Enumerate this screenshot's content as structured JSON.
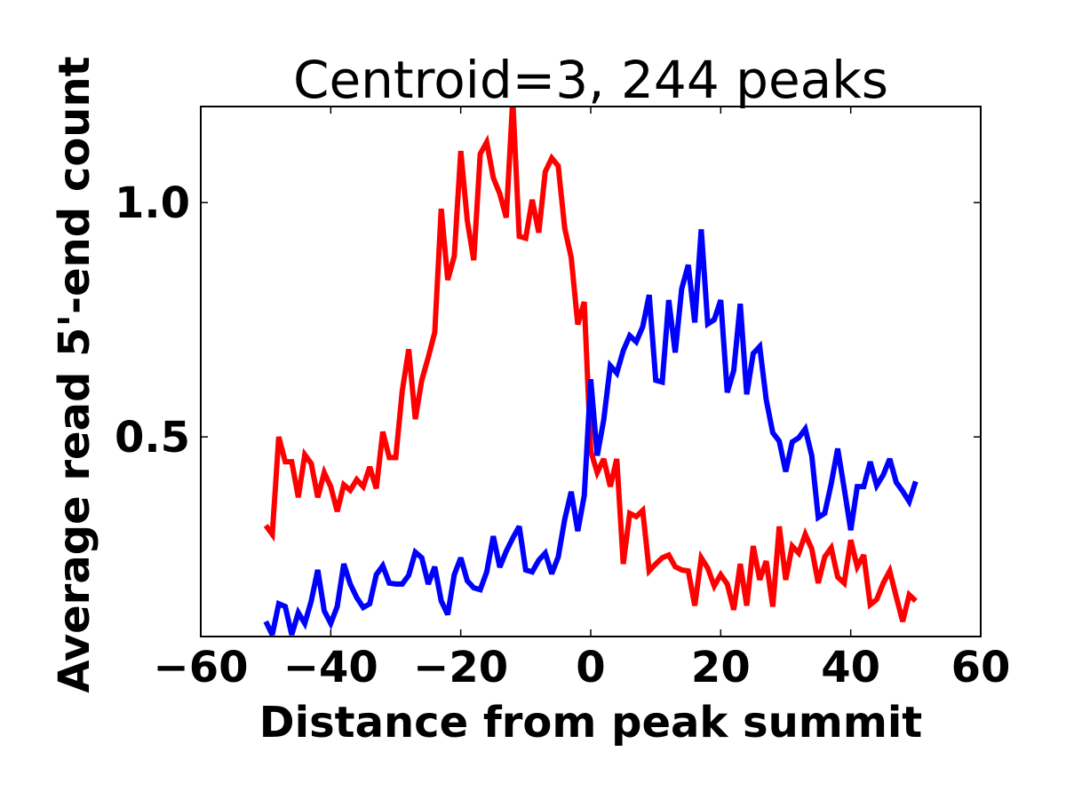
{
  "chart_data": {
    "type": "line",
    "title": "Centroid=3, 244 peaks",
    "xlabel": "Distance from peak summit",
    "ylabel": "Average read 5'-end count",
    "xlim": [
      -60,
      60
    ],
    "ylim": [
      0.074,
      1.205
    ],
    "xticks": [
      -60,
      -40,
      -20,
      0,
      20,
      40,
      60
    ],
    "xticklabels": [
      "−60",
      "−40",
      "−20",
      "0",
      "20",
      "40",
      "60"
    ],
    "yticks": [
      0.5,
      1.0
    ],
    "yticklabels": [
      "0.5",
      "1.0"
    ],
    "grid": false,
    "x_start": -50,
    "x_step": 1,
    "series": [
      {
        "color": "#ff0000",
        "values": [
          0.311,
          0.292,
          0.5,
          0.447,
          0.447,
          0.371,
          0.462,
          0.443,
          0.371,
          0.424,
          0.394,
          0.341,
          0.398,
          0.386,
          0.409,
          0.394,
          0.436,
          0.39,
          0.511,
          0.456,
          0.456,
          0.598,
          0.687,
          0.538,
          0.621,
          0.67,
          0.723,
          0.987,
          0.835,
          0.886,
          1.11,
          0.962,
          0.877,
          1.104,
          1.129,
          1.053,
          1.019,
          0.968,
          1.22,
          0.928,
          0.924,
          1.006,
          0.936,
          1.066,
          1.095,
          1.078,
          0.945,
          0.883,
          0.74,
          0.788,
          0.47,
          0.424,
          0.453,
          0.394,
          0.453,
          0.229,
          0.337,
          0.33,
          0.343,
          0.214,
          0.229,
          0.242,
          0.248,
          0.223,
          0.216,
          0.214,
          0.14,
          0.242,
          0.22,
          0.182,
          0.206,
          0.186,
          0.131,
          0.229,
          0.14,
          0.267,
          0.195,
          0.235,
          0.138,
          0.309,
          0.195,
          0.267,
          0.252,
          0.292,
          0.261,
          0.188,
          0.244,
          0.263,
          0.201,
          0.188,
          0.28,
          0.223,
          0.248,
          0.142,
          0.153,
          0.188,
          0.214,
          0.159,
          0.106,
          0.163,
          0.15
        ]
      },
      {
        "color": "#0000ff",
        "values": [
          0.106,
          0.078,
          0.144,
          0.138,
          0.078,
          0.125,
          0.102,
          0.15,
          0.216,
          0.129,
          0.102,
          0.138,
          0.229,
          0.186,
          0.157,
          0.136,
          0.144,
          0.206,
          0.225,
          0.188,
          0.186,
          0.186,
          0.205,
          0.254,
          0.242,
          0.186,
          0.223,
          0.15,
          0.121,
          0.206,
          0.242,
          0.193,
          0.178,
          0.174,
          0.212,
          0.288,
          0.222,
          0.256,
          0.284,
          0.309,
          0.216,
          0.212,
          0.237,
          0.252,
          0.208,
          0.244,
          0.324,
          0.383,
          0.299,
          0.375,
          0.623,
          0.46,
          0.536,
          0.652,
          0.636,
          0.684,
          0.716,
          0.703,
          0.735,
          0.803,
          0.621,
          0.617,
          0.792,
          0.68,
          0.816,
          0.867,
          0.744,
          0.943,
          0.741,
          0.75,
          0.792,
          0.595,
          0.642,
          0.784,
          0.591,
          0.678,
          0.693,
          0.58,
          0.509,
          0.491,
          0.426,
          0.489,
          0.498,
          0.517,
          0.46,
          0.328,
          0.337,
          0.4,
          0.475,
          0.39,
          0.301,
          0.394,
          0.394,
          0.447,
          0.396,
          0.419,
          0.453,
          0.403,
          0.384,
          0.362,
          0.405
        ]
      }
    ]
  }
}
